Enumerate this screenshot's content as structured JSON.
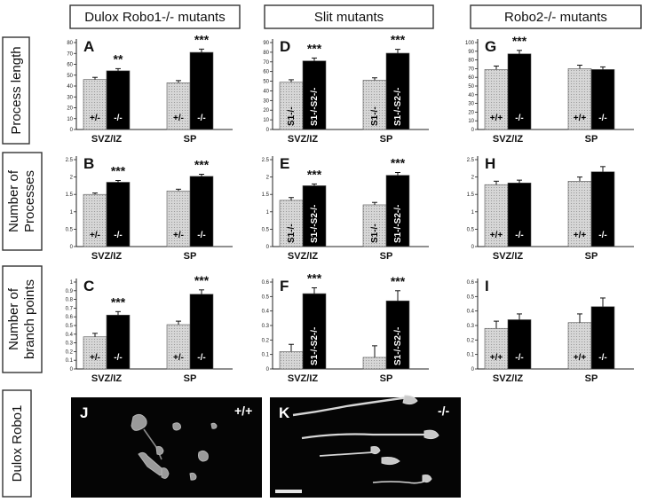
{
  "headers": [
    "Dulox Robo1-/- mutants",
    "Slit mutants",
    "Robo2-/- mutants"
  ],
  "row_labels": [
    [
      "Process length"
    ],
    [
      "Number of",
      "Processes"
    ],
    [
      "Number of",
      "branch points"
    ],
    [
      "Dulox Robo1"
    ]
  ],
  "colors": {
    "control": "#d6d6d6",
    "mutant": "#000000",
    "control_text": "#000000",
    "mutant_text": "#ffffff"
  },
  "chart_data": [
    {
      "panel": "A",
      "type": "bar",
      "categories": [
        "SVZ/IZ",
        "SP"
      ],
      "bar_labels": [
        "+/-",
        "-/-"
      ],
      "ylim": [
        0,
        80
      ],
      "yticks": [
        "0",
        "10",
        "20",
        "30",
        "40",
        "50",
        "60",
        "70",
        "80"
      ],
      "series": [
        {
          "values": [
            46,
            43
          ],
          "errors": [
            2,
            2
          ]
        },
        {
          "values": [
            54,
            71
          ],
          "errors": [
            2,
            3
          ]
        }
      ],
      "significance": [
        "**",
        "***"
      ]
    },
    {
      "panel": "D",
      "type": "bar",
      "categories": [
        "SVZ/IZ",
        "SP"
      ],
      "bar_labels": [
        "S1-/-",
        "S1-/-S2-/-"
      ],
      "ylim": [
        0,
        90
      ],
      "yticks": [
        "0",
        "10",
        "20",
        "30",
        "40",
        "50",
        "60",
        "70",
        "80",
        "90"
      ],
      "series": [
        {
          "values": [
            49,
            51
          ],
          "errors": [
            2.5,
            2.5
          ]
        },
        {
          "values": [
            71,
            79
          ],
          "errors": [
            3,
            4
          ]
        }
      ],
      "significance": [
        "***",
        "***"
      ]
    },
    {
      "panel": "G",
      "type": "bar",
      "categories": [
        "SVZ/IZ",
        "SP"
      ],
      "bar_labels": [
        "+/+",
        "-/-"
      ],
      "ylim": [
        0,
        100
      ],
      "yticks": [
        "0",
        "10",
        "20",
        "30",
        "40",
        "50",
        "60",
        "70",
        "80",
        "90",
        "100"
      ],
      "series": [
        {
          "values": [
            69,
            70
          ],
          "errors": [
            4,
            4
          ]
        },
        {
          "values": [
            87,
            69
          ],
          "errors": [
            4,
            3
          ]
        }
      ],
      "significance": [
        "***",
        ""
      ]
    },
    {
      "panel": "B",
      "type": "bar",
      "categories": [
        "SVZ/IZ",
        "SP"
      ],
      "bar_labels": [
        "+/-",
        "-/-"
      ],
      "ylim": [
        0,
        2.5
      ],
      "yticks": [
        "0",
        "0.5",
        "1",
        "1.5",
        "2",
        "2.5"
      ],
      "series": [
        {
          "values": [
            1.5,
            1.6
          ],
          "errors": [
            0.04,
            0.05
          ]
        },
        {
          "values": [
            1.85,
            2.02
          ],
          "errors": [
            0.05,
            0.06
          ]
        }
      ],
      "significance": [
        "***",
        "***"
      ]
    },
    {
      "panel": "E",
      "type": "bar",
      "categories": [
        "SVZ/IZ",
        "SP"
      ],
      "bar_labels": [
        "S1-/-",
        "S1-/-S2-/-"
      ],
      "ylim": [
        0,
        2.5
      ],
      "yticks": [
        "0",
        "0.5",
        "1",
        "1.5",
        "2",
        "2.5"
      ],
      "series": [
        {
          "values": [
            1.33,
            1.2
          ],
          "errors": [
            0.08,
            0.07
          ]
        },
        {
          "values": [
            1.75,
            2.05
          ],
          "errors": [
            0.05,
            0.08
          ]
        }
      ],
      "significance": [
        "***",
        "***"
      ]
    },
    {
      "panel": "H",
      "type": "bar",
      "categories": [
        "SVZ/IZ",
        "SP"
      ],
      "bar_labels": [
        "+/+",
        "-/-"
      ],
      "ylim": [
        0,
        2.5
      ],
      "yticks": [
        "0",
        "0.5",
        "1",
        "1.5",
        "2",
        "2.5"
      ],
      "series": [
        {
          "values": [
            1.78,
            1.88
          ],
          "errors": [
            0.1,
            0.12
          ]
        },
        {
          "values": [
            1.83,
            2.15
          ],
          "errors": [
            0.08,
            0.15
          ]
        }
      ],
      "significance": [
        "",
        ""
      ]
    },
    {
      "panel": "C",
      "type": "bar",
      "categories": [
        "SVZ/IZ",
        "SP"
      ],
      "bar_labels": [
        "+/-",
        "-/-"
      ],
      "ylim": [
        0,
        1
      ],
      "yticks": [
        "0",
        "0.1",
        "0.2",
        "0.3",
        "0.4",
        "0.5",
        "0.6",
        "0.7",
        "0.8",
        "0.9",
        "1"
      ],
      "series": [
        {
          "values": [
            0.37,
            0.51
          ],
          "errors": [
            0.04,
            0.04
          ]
        },
        {
          "values": [
            0.62,
            0.86
          ],
          "errors": [
            0.04,
            0.05
          ]
        }
      ],
      "significance": [
        "***",
        "***"
      ]
    },
    {
      "panel": "F",
      "type": "bar",
      "categories": [
        "SVZ/IZ",
        "SP"
      ],
      "bar_labels": [
        "",
        "S1-/-S2-/-"
      ],
      "ylim": [
        0,
        0.6
      ],
      "yticks": [
        "0",
        "0.1",
        "0.2",
        "0.3",
        "0.4",
        "0.5",
        "0.6"
      ],
      "series": [
        {
          "values": [
            0.12,
            0.08
          ],
          "errors": [
            0.05,
            0.08
          ]
        },
        {
          "values": [
            0.52,
            0.47
          ],
          "errors": [
            0.04,
            0.07
          ]
        }
      ],
      "significance": [
        "***",
        "***"
      ]
    },
    {
      "panel": "I",
      "type": "bar",
      "categories": [
        "SVZ/IZ",
        "SP"
      ],
      "bar_labels": [
        "+/+",
        "-/-"
      ],
      "ylim": [
        0,
        0.6
      ],
      "yticks": [
        "0",
        "0.1",
        "0.2",
        "0.3",
        "0.4",
        "0.5",
        "0.6"
      ],
      "series": [
        {
          "values": [
            0.28,
            0.32
          ],
          "errors": [
            0.05,
            0.06
          ]
        },
        {
          "values": [
            0.34,
            0.43
          ],
          "errors": [
            0.04,
            0.06
          ]
        }
      ],
      "significance": [
        "",
        ""
      ]
    }
  ],
  "images": [
    {
      "panel": "J",
      "genotype": "+/+"
    },
    {
      "panel": "K",
      "genotype": "-/-"
    }
  ]
}
